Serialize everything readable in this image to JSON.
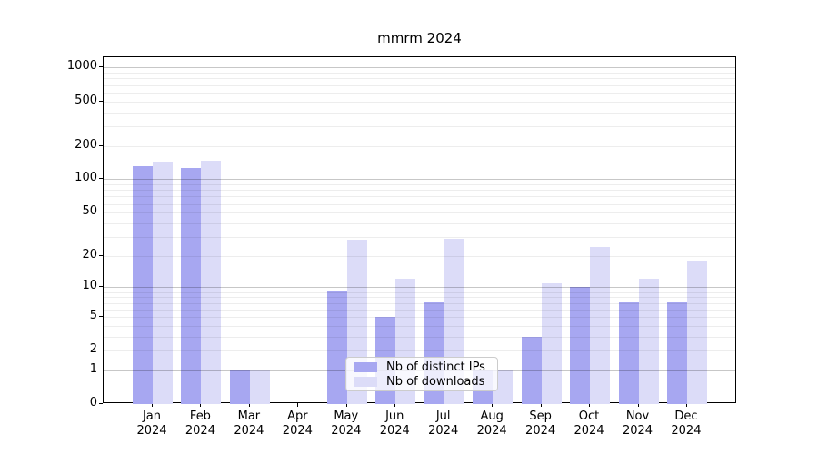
{
  "chart_data": {
    "type": "bar",
    "title": "mmrm 2024",
    "scale": "log1p",
    "grid": "both",
    "legend_position": "lower-center-inside",
    "categories": [
      "Jan",
      "Feb",
      "Mar",
      "Apr",
      "May",
      "Jun",
      "Jul",
      "Aug",
      "Sep",
      "Oct",
      "Nov",
      "Dec"
    ],
    "year": "2024",
    "series": [
      {
        "name": "Nb of distinct IPs",
        "color": "#a7a7f1",
        "values": [
          131,
          127,
          1,
          0,
          9,
          5,
          7,
          1,
          3,
          10,
          7,
          7
        ]
      },
      {
        "name": "Nb of downloads",
        "color": "#dcdcf8",
        "values": [
          143,
          146,
          1,
          0,
          28,
          12,
          29,
          1,
          11,
          24,
          12,
          18
        ]
      }
    ],
    "y_tick_values": [
      0,
      1,
      2,
      5,
      10,
      20,
      50,
      100,
      200,
      500,
      1000
    ],
    "y_tick_labels": [
      "0",
      "1",
      "2",
      "5",
      "10",
      "20",
      "50",
      "100",
      "200",
      "500",
      "1000"
    ],
    "y_minor_grid_values": [
      2,
      3,
      4,
      5,
      6,
      7,
      8,
      9,
      20,
      30,
      40,
      50,
      60,
      70,
      80,
      90,
      200,
      300,
      400,
      500,
      600,
      700,
      800,
      900
    ],
    "y_major_grid_values": [
      1,
      10,
      100,
      1000
    ],
    "ylim": [
      0,
      1237
    ],
    "xlabel": "",
    "ylabel": ""
  }
}
